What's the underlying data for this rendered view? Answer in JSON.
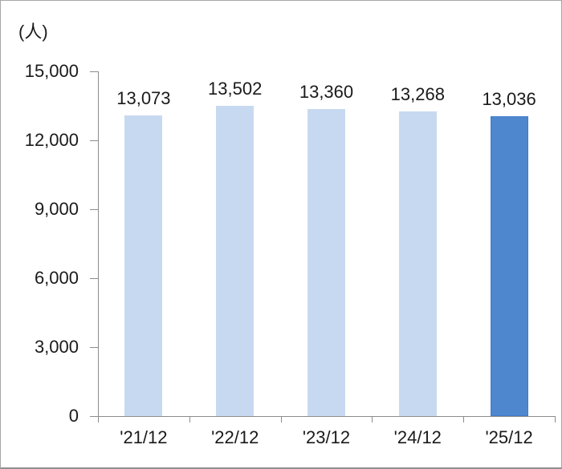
{
  "chart_data": {
    "type": "bar",
    "title": "",
    "unit_label": "(人)",
    "categories": [
      "'21/12",
      "'22/12",
      "'23/12",
      "'24/12",
      "'25/12"
    ],
    "values": [
      13073,
      13502,
      13360,
      13268,
      13036
    ],
    "value_labels": [
      "13,073",
      "13,502",
      "13,360",
      "13,268",
      "13,036"
    ],
    "ylim": [
      0,
      15000
    ],
    "y_tick_values": [
      0,
      3000,
      6000,
      9000,
      12000,
      15000
    ],
    "y_tick_labels": [
      "0",
      "3,000",
      "6,000",
      "9,000",
      "12,000",
      "15,000"
    ],
    "grid": "off",
    "legend": "none",
    "highlight_index": 4,
    "colors": {
      "bar_default": "#c7d9f0",
      "bar_highlight": "#4e87ce",
      "bar_highlight_border": "#3f7cc8",
      "axis": "#8c8c8c",
      "text": "#1a1a1a"
    }
  }
}
